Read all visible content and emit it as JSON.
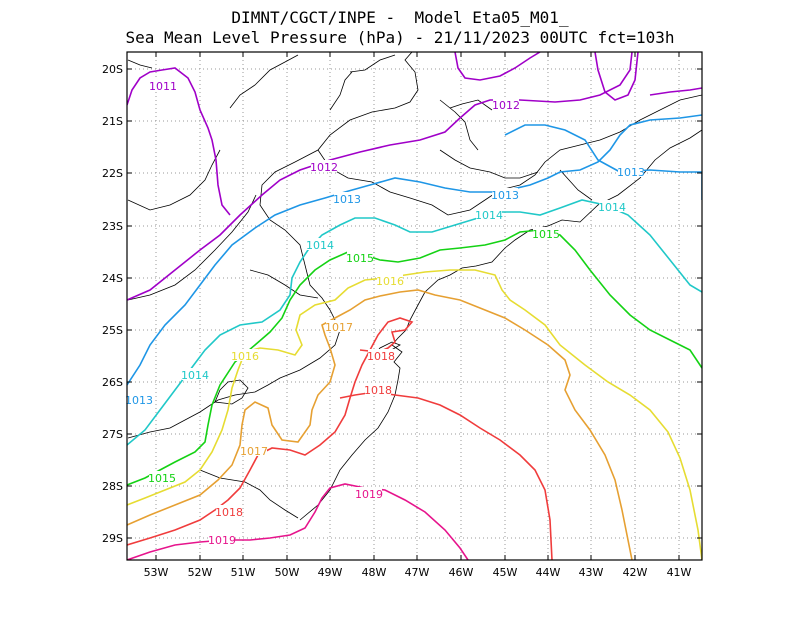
{
  "title": {
    "line1": "DIMNT/CGCT/INPE -  Model Eta05_M01_",
    "line2": "Sea Mean Level Pressure (hPa) - 21/11/2023 00UTC fct=103h"
  },
  "axes": {
    "lat_labels": [
      "20S",
      "21S",
      "22S",
      "23S",
      "24S",
      "25S",
      "26S",
      "27S",
      "28S",
      "29S"
    ],
    "lon_labels": [
      "53W",
      "52W",
      "51W",
      "50W",
      "49W",
      "48W",
      "47W",
      "46W",
      "45W",
      "44W",
      "43W",
      "42W",
      "41W"
    ]
  },
  "levels": [
    {
      "value": "1011",
      "color": "#a000c8"
    },
    {
      "value": "1012",
      "color": "#a000c8"
    },
    {
      "value": "1013",
      "color": "#1e96e6"
    },
    {
      "value": "1014",
      "color": "#20c8c8"
    },
    {
      "value": "1015",
      "color": "#14d214"
    },
    {
      "value": "1016",
      "color": "#e6dc32"
    },
    {
      "value": "1017",
      "color": "#e6a032"
    },
    {
      "value": "1018",
      "color": "#f03c3c"
    },
    {
      "value": "1019",
      "color": "#e6148c"
    }
  ],
  "labels": [
    {
      "text": "1011",
      "level": 0
    },
    {
      "text": "1012",
      "level": 1
    },
    {
      "text": "1012",
      "level": 1
    },
    {
      "text": "1013",
      "level": 2
    },
    {
      "text": "1013",
      "level": 2
    },
    {
      "text": "1013",
      "level": 2
    },
    {
      "text": "1013",
      "level": 2
    },
    {
      "text": "1014",
      "level": 3
    },
    {
      "text": "1014",
      "level": 3
    },
    {
      "text": "1014",
      "level": 3
    },
    {
      "text": "1014",
      "level": 3
    },
    {
      "text": "1015",
      "level": 4
    },
    {
      "text": "1015",
      "level": 4
    },
    {
      "text": "1015",
      "level": 4
    },
    {
      "text": "1016",
      "level": 5
    },
    {
      "text": "1016",
      "level": 5
    },
    {
      "text": "1017",
      "level": 6
    },
    {
      "text": "1017",
      "level": 6
    },
    {
      "text": "1018",
      "level": 7
    },
    {
      "text": "1018",
      "level": 7
    },
    {
      "text": "1018",
      "level": 7
    },
    {
      "text": "1019",
      "level": 8
    },
    {
      "text": "1019",
      "level": 8
    }
  ]
}
